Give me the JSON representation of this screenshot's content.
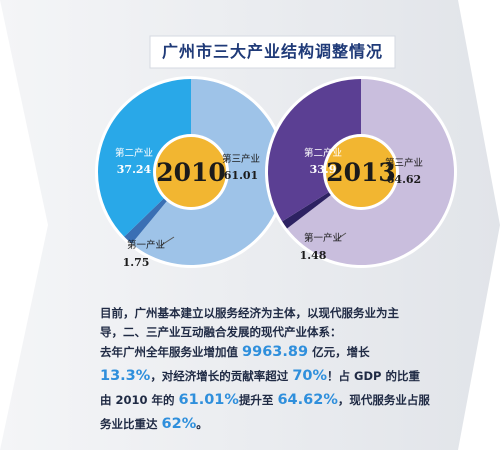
{
  "title": "广州市三大产业结构调整情况",
  "colors": {
    "secondary_2010": "#29a8e8",
    "tertiary_2010": "#9ec3e8",
    "primary_2010": "#3a6fb4",
    "secondary_2013": "#5b3f93",
    "tertiary_2013": "#c9bedd",
    "primary_2013": "#2d2262",
    "year_badge": "#f2b631",
    "title_color": "#1f3a78",
    "highlight": "#2f8fdc"
  },
  "chart_data": [
    {
      "type": "pie",
      "center_label": "2010",
      "slices": [
        {
          "label": "第三产业",
          "value": 61.01,
          "value_text": "61.01"
        },
        {
          "label": "第二产业",
          "value": 37.24,
          "value_text": "37.24"
        },
        {
          "label": "第一产业",
          "value": 1.75,
          "value_text": "1.75"
        }
      ]
    },
    {
      "type": "pie",
      "center_label": "2013",
      "slices": [
        {
          "label": "第三产业",
          "value": 64.62,
          "value_text": "64.62"
        },
        {
          "label": "第二产业",
          "value": 33.9,
          "value_text": "33.9"
        },
        {
          "label": "第一产业",
          "value": 1.48,
          "value_text": "1.48"
        }
      ]
    }
  ],
  "text": {
    "p1": "目前，广州基本建立以服务经济为主体，以现代服务业为主导，二、三产业互动融合发展的现代产业体系：",
    "p2": [
      {
        "t": "去年广州全年服务业增加值 ",
        "hl": false
      },
      {
        "t": "9963.89",
        "hl": true
      },
      {
        "t": " 亿元，增长 ",
        "hl": false
      },
      {
        "t": "13.3%",
        "hl": true
      },
      {
        "t": "，对经济增长的贡献率超过 ",
        "hl": false
      },
      {
        "t": "70%",
        "hl": true
      },
      {
        "t": "！占 GDP 的比重由 2010 年的 ",
        "hl": false
      },
      {
        "t": "61.01%",
        "hl": true
      },
      {
        "t": "提升至 ",
        "hl": false
      },
      {
        "t": "64.62%",
        "hl": true
      },
      {
        "t": "，现代服务业占服务业比重达 ",
        "hl": false
      },
      {
        "t": "62%",
        "hl": true
      },
      {
        "t": "。",
        "hl": false
      }
    ]
  }
}
